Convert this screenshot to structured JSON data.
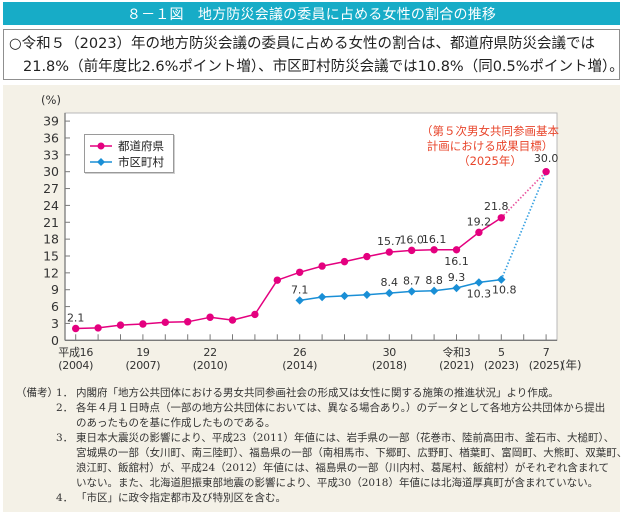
{
  "figure": {
    "title": "８－１図　地方防災会議の委員に占める女性の割合の推移"
  },
  "summary": {
    "line1": "○令和５（2023）年の地方防災会議の委員に占める女性の割合は、都道府県防災会議では",
    "line2": "21.8%（前年度比2.6%ポイント増）、市区町村防災会議では10.8%（同0.5%ポイント増）。"
  },
  "colors": {
    "title_bar": "#17acc7",
    "panel_background": "#f4f1e7",
    "prefecture": "#e4007f",
    "prefecture_projection": "#e9579f",
    "municipality": "#1a8fd6",
    "municipality_projection": "#3aa2e2",
    "target_annotation": "#e8452b",
    "axis": "#7a7a7a"
  },
  "chart_data": {
    "type": "line",
    "title": "地方防災会議の委員に占める女性の割合の推移",
    "ylabel": "(%)",
    "xlabel": "(年)",
    "ylim": [
      0,
      39
    ],
    "yticks": [
      0,
      3,
      6,
      9,
      12,
      15,
      18,
      21,
      24,
      27,
      30,
      33,
      36,
      39
    ],
    "xlim": [
      2004,
      2025
    ],
    "xtick_step": 1,
    "xtick_labels": [
      {
        "x": 2004,
        "era": "平成16",
        "year": "(2004)"
      },
      {
        "x": 2007,
        "era": "19",
        "year": "(2007)"
      },
      {
        "x": 2010,
        "era": "22",
        "year": "(2010)"
      },
      {
        "x": 2014,
        "era": "26",
        "year": "(2014)"
      },
      {
        "x": 2018,
        "era": "30",
        "year": "(2018)"
      },
      {
        "x": 2021,
        "era": "令和3",
        "year": "(2021)"
      },
      {
        "x": 2023,
        "era": "5",
        "year": "(2023)"
      },
      {
        "x": 2025,
        "era": "7",
        "year": "(2025)"
      }
    ],
    "grid": false,
    "legend": {
      "placement": "top-left",
      "entries": [
        {
          "label": "都道府県",
          "marker": "circle"
        },
        {
          "label": "市区町村",
          "marker": "diamond"
        }
      ]
    },
    "series": [
      {
        "name": "都道府県",
        "marker": "circle",
        "x": [
          2004,
          2005,
          2006,
          2007,
          2008,
          2009,
          2010,
          2011,
          2012,
          2013,
          2014,
          2015,
          2016,
          2017,
          2018,
          2019,
          2020,
          2021,
          2022,
          2023
        ],
        "values": [
          2.1,
          2.2,
          2.7,
          2.9,
          3.2,
          3.3,
          4.1,
          3.6,
          4.6,
          10.7,
          12.1,
          13.2,
          14.0,
          14.9,
          15.7,
          16.0,
          16.1,
          16.1,
          19.2,
          21.8
        ],
        "projection": {
          "x": [
            2023,
            2025
          ],
          "values": [
            21.8,
            30.0
          ],
          "style": "dotted"
        },
        "labels": [
          {
            "x": 2004,
            "value": 2.1,
            "text": "2.1",
            "pos": "above"
          },
          {
            "x": 2018,
            "value": 15.7,
            "text": "15.7",
            "pos": "above"
          },
          {
            "x": 2019,
            "value": 16.0,
            "text": "16.0",
            "pos": "above"
          },
          {
            "x": 2020,
            "value": 16.1,
            "text": "16.1",
            "pos": "above"
          },
          {
            "x": 2021,
            "value": 16.1,
            "text": "16.1",
            "pos": "below"
          },
          {
            "x": 2022,
            "value": 19.2,
            "text": "19.2",
            "pos": "above"
          },
          {
            "x": 2023,
            "value": 21.8,
            "text": "21.8",
            "pos": "above-left"
          }
        ]
      },
      {
        "name": "市区町村",
        "marker": "diamond",
        "x": [
          2014,
          2015,
          2016,
          2017,
          2018,
          2019,
          2020,
          2021,
          2022,
          2023
        ],
        "values": [
          7.1,
          7.7,
          7.9,
          8.1,
          8.4,
          8.7,
          8.8,
          9.3,
          10.3,
          10.8
        ],
        "projection": {
          "x": [
            2023,
            2025
          ],
          "values": [
            10.8,
            30.0
          ],
          "style": "dotted"
        },
        "labels": [
          {
            "x": 2014,
            "value": 7.1,
            "text": "7.1",
            "pos": "above"
          },
          {
            "x": 2018,
            "value": 8.4,
            "text": "8.4",
            "pos": "above"
          },
          {
            "x": 2019,
            "value": 8.7,
            "text": "8.7",
            "pos": "above"
          },
          {
            "x": 2020,
            "value": 8.8,
            "text": "8.8",
            "pos": "above"
          },
          {
            "x": 2021,
            "value": 9.3,
            "text": "9.3",
            "pos": "above"
          },
          {
            "x": 2022,
            "value": 10.3,
            "text": "10.3",
            "pos": "below"
          },
          {
            "x": 2023,
            "value": 10.8,
            "text": "10.8",
            "pos": "below-right"
          }
        ]
      }
    ],
    "target": {
      "x": 2025,
      "value": 30.0,
      "label": "30.0",
      "annotation_lines": [
        "（第５次男女共同参画基本",
        "計画における成果目標）",
        "（2025年）"
      ]
    }
  },
  "notes": {
    "heading": "（備考）",
    "lines": [
      {
        "num": "1．",
        "text": "内閣府「地方公共団体における男女共同参画社会の形成又は女性に関する施策の推進状況」より作成。"
      },
      {
        "num": "2．",
        "text": "各年４月１日時点（一部の地方公共団体においては、異なる場合あり。）のデータとして各地方公共団体から提出"
      },
      {
        "num": "",
        "text": "のあったものを基に作成したものである。"
      },
      {
        "num": "3．",
        "text": "東日本大震災の影響により、平成23（2011）年値には、岩手県の一部（花巻市、陸前高田市、釜石市、大槌町）、"
      },
      {
        "num": "",
        "text": "宮城県の一部（女川町、南三陸町）、福島県の一部（南相馬市、下郷町、広野町、楢葉町、富岡町、大熊町、双葉町、"
      },
      {
        "num": "",
        "text": "浪江町、飯舘村）が、平成24（2012）年値には、福島県の一部（川内村、葛尾村、飯舘村）がそれぞれ含まれて"
      },
      {
        "num": "",
        "text": "いない。また、北海道胆振東部地震の影響により、平成30（2018）年値には北海道厚真町が含まれていない。"
      },
      {
        "num": "4．",
        "text": "「市区」に政令指定都市及び特別区を含む。"
      }
    ]
  }
}
